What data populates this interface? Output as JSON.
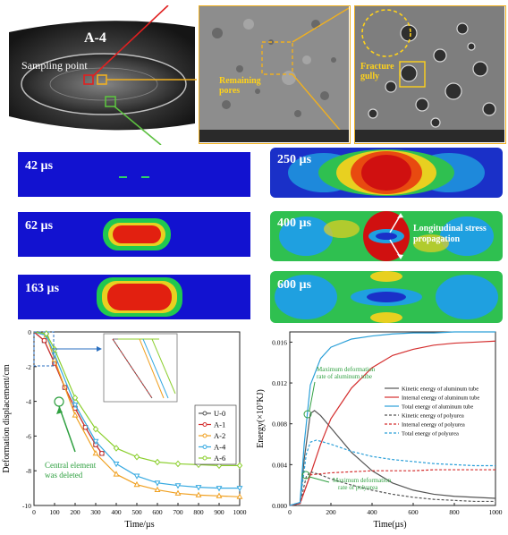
{
  "photo": {
    "label": "A-4",
    "sampling": "Sampling point"
  },
  "sem": [
    {
      "label": "Remaining pores"
    },
    {
      "label": "Fracture gully"
    }
  ],
  "sims": [
    {
      "time": "42 µs"
    },
    {
      "time": "62 µs"
    },
    {
      "time": "163 µs"
    },
    {
      "time": "250 µs"
    },
    {
      "time": "400 µs"
    },
    {
      "time": "600 µs"
    }
  ],
  "sim_annotation": {
    "line1": "Longitudinal stress",
    "line2": "propagation"
  },
  "chart_data": [
    {
      "type": "line",
      "xlabel": "Time/µs",
      "ylabel": "Deformation displacement/cm",
      "xlim": [
        0,
        1000
      ],
      "ylim": [
        -10,
        0
      ],
      "xticks": [
        0,
        100,
        200,
        300,
        400,
        500,
        600,
        700,
        800,
        900,
        1000
      ],
      "yticks": [
        0,
        -2,
        -4,
        -6,
        -8,
        -10
      ],
      "annotation": {
        "line1": "Central element",
        "line2": "was deleted"
      },
      "legend_position": "right",
      "series": [
        {
          "name": "U-0",
          "color": "#555555",
          "x": [
            0,
            50,
            100,
            150,
            200,
            250,
            300,
            330
          ],
          "y": [
            0,
            -0.5,
            -1.8,
            -3.2,
            -4.4,
            -5.5,
            -6.5,
            -7.0
          ]
        },
        {
          "name": "A-1",
          "color": "#d42e2e",
          "x": [
            0,
            50,
            100,
            150,
            200,
            250,
            300,
            330
          ],
          "y": [
            0,
            -0.5,
            -1.8,
            -3.2,
            -4.4,
            -5.5,
            -6.5,
            -7.0
          ]
        },
        {
          "name": "A-2",
          "color": "#f0a020",
          "x": [
            0,
            60,
            100,
            200,
            300,
            400,
            500,
            600,
            700,
            800,
            900,
            1000
          ],
          "y": [
            0,
            -0.2,
            -1.6,
            -4.8,
            -7.0,
            -8.2,
            -8.8,
            -9.1,
            -9.3,
            -9.4,
            -9.45,
            -9.5
          ]
        },
        {
          "name": "A-4",
          "color": "#36a9e1",
          "x": [
            0,
            60,
            100,
            200,
            300,
            400,
            500,
            600,
            700,
            800,
            900,
            1000
          ],
          "y": [
            0,
            -0.2,
            -1.3,
            -4.2,
            -6.3,
            -7.6,
            -8.3,
            -8.7,
            -8.85,
            -8.95,
            -9.0,
            -9.0
          ]
        },
        {
          "name": "A-6",
          "color": "#8ccf2f",
          "x": [
            0,
            60,
            100,
            200,
            300,
            400,
            500,
            600,
            700,
            800,
            900,
            1000
          ],
          "y": [
            0,
            -0.1,
            -1.0,
            -3.8,
            -5.6,
            -6.7,
            -7.2,
            -7.5,
            -7.6,
            -7.65,
            -7.7,
            -7.7
          ]
        }
      ]
    },
    {
      "type": "line",
      "xlabel": "Time(µs)",
      "ylabel": "Energy(×10⁷KJ)",
      "xlim": [
        0,
        1000
      ],
      "ylim": [
        0,
        0.017
      ],
      "xticks": [
        0,
        200,
        400,
        600,
        800,
        1000
      ],
      "yticks": [
        0.0,
        0.004,
        0.008,
        0.012,
        0.016
      ],
      "annotations": [
        {
          "line1": "Maximum deformation",
          "line2": "rate of aluminum tube"
        },
        {
          "line1": "Maximum deformation",
          "line2": "rate of polyurea"
        }
      ],
      "legend_position": "right",
      "series": [
        {
          "name": "Kinetic energy of aluminum tube",
          "color": "#555555",
          "dash": "",
          "x": [
            0,
            50,
            70,
            100,
            120,
            150,
            200,
            300,
            400,
            500,
            600,
            700,
            800,
            900,
            1000
          ],
          "y": [
            0,
            0.0002,
            0.0045,
            0.009,
            0.0093,
            0.0088,
            0.0076,
            0.0052,
            0.0034,
            0.0022,
            0.0015,
            0.0011,
            0.0009,
            0.0008,
            0.0007
          ]
        },
        {
          "name": "Internal energy of aluminum tube",
          "color": "#d42e2e",
          "dash": "",
          "x": [
            0,
            50,
            100,
            150,
            200,
            300,
            400,
            500,
            600,
            700,
            800,
            900,
            1000
          ],
          "y": [
            0,
            0.0002,
            0.003,
            0.006,
            0.0085,
            0.0115,
            0.0135,
            0.0147,
            0.0153,
            0.0157,
            0.0159,
            0.016,
            0.0161
          ]
        },
        {
          "name": "Total energy of aluminum tube",
          "color": "#2a9fd8",
          "dash": "",
          "x": [
            0,
            50,
            70,
            100,
            150,
            200,
            300,
            400,
            500,
            600,
            700,
            800,
            900,
            1000
          ],
          "y": [
            0,
            0.0003,
            0.006,
            0.0118,
            0.0144,
            0.0155,
            0.0163,
            0.0166,
            0.0168,
            0.0169,
            0.0169,
            0.017,
            0.017,
            0.017
          ]
        },
        {
          "name": "Kinetic energy of polyurea",
          "color": "#555555",
          "dash": "3,2",
          "x": [
            0,
            50,
            80,
            100,
            150,
            200,
            300,
            400,
            500,
            600,
            700,
            800,
            900,
            1000
          ],
          "y": [
            0,
            0.0002,
            0.0028,
            0.0033,
            0.003,
            0.0026,
            0.002,
            0.0015,
            0.0011,
            0.0008,
            0.0006,
            0.0005,
            0.0004,
            0.0004
          ]
        },
        {
          "name": "Internal energy of polyurea",
          "color": "#d42e2e",
          "dash": "3,2",
          "x": [
            0,
            50,
            100,
            150,
            200,
            300,
            400,
            500,
            600,
            700,
            800,
            900,
            1000
          ],
          "y": [
            0,
            0.0002,
            0.003,
            0.0031,
            0.0032,
            0.0033,
            0.0034,
            0.0034,
            0.0034,
            0.0035,
            0.0035,
            0.0035,
            0.0035
          ]
        },
        {
          "name": "Total energy of polyurea",
          "color": "#2a9fd8",
          "dash": "3,2",
          "x": [
            0,
            50,
            80,
            100,
            130,
            200,
            300,
            400,
            500,
            600,
            700,
            800,
            900,
            1000
          ],
          "y": [
            0,
            0.0003,
            0.005,
            0.0062,
            0.0064,
            0.006,
            0.0053,
            0.0048,
            0.0045,
            0.0043,
            0.0041,
            0.004,
            0.0039,
            0.0039
          ]
        }
      ]
    }
  ]
}
